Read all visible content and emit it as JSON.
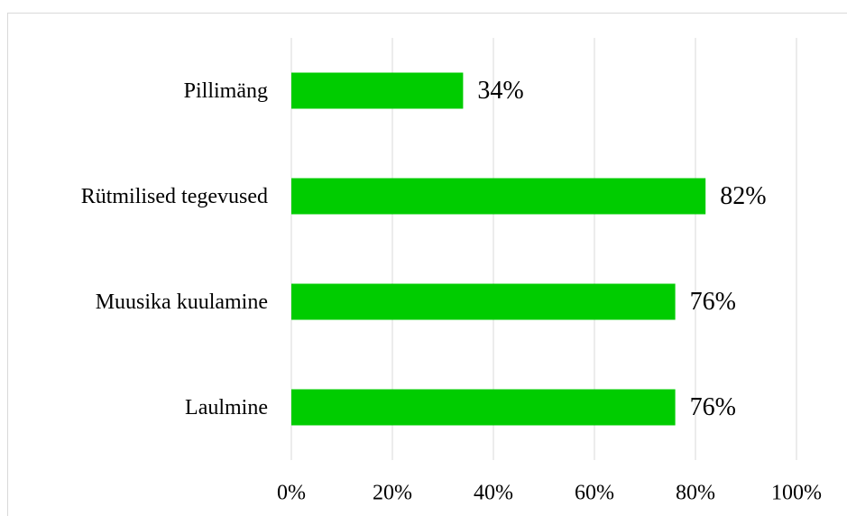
{
  "chart_data": {
    "type": "bar",
    "orientation": "horizontal",
    "categories": [
      "Pillimäng",
      "Rütmilised tegevused",
      "Muusika kuulamine",
      "Laulmine"
    ],
    "values": [
      34,
      82,
      76,
      76
    ],
    "value_labels": [
      "34%",
      "82%",
      "76%",
      "76%"
    ],
    "color": "#00cc00",
    "xlim": [
      0,
      100
    ],
    "xticks": [
      {
        "value": 0,
        "label": "0%"
      },
      {
        "value": 20,
        "label": "20%"
      },
      {
        "value": 40,
        "label": "40%"
      },
      {
        "value": 60,
        "label": "60%"
      },
      {
        "value": 80,
        "label": "80%"
      },
      {
        "value": 100,
        "label": "100%"
      }
    ],
    "grid": true
  }
}
